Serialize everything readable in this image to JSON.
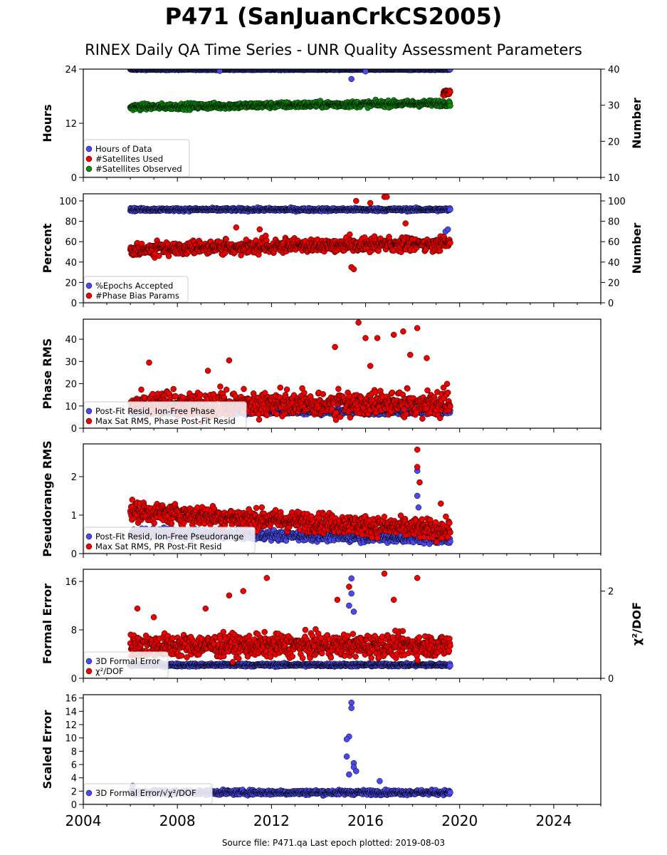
{
  "title": "P471 (SanJuanCrkCS2005)",
  "subtitle": "RINEX Daily QA Time Series - UNR Quality Assessment Parameters",
  "footer": "Source file: P471.qa Last epoch plotted: 2019-08-03",
  "colors": {
    "blue": "#4a4aee",
    "red": "#ee0000",
    "green": "#0a8a0a",
    "edge": "#000000"
  },
  "x_axis": {
    "range": [
      2004,
      2026
    ],
    "ticks": [
      2004,
      2008,
      2012,
      2016,
      2020,
      2024
    ]
  },
  "chart_data": [
    {
      "type": "scatter",
      "ylabel": "Hours",
      "ylabel_right": "Number",
      "ylim": [
        0,
        24
      ],
      "yticks": [
        0,
        12,
        24
      ],
      "ylim_right": [
        10,
        40
      ],
      "yticks_right": [
        10,
        20,
        30,
        40
      ],
      "legend": "lower-left",
      "series": [
        {
          "name": "Hours of Data",
          "color": "#4a4aee",
          "axis": "left",
          "x_range": [
            2006.0,
            2019.6
          ],
          "level": 23.9,
          "spread": 0.1,
          "outliers": [
            [
              2009.8,
              23.6
            ],
            [
              2015.4,
              21.8
            ],
            [
              2016.0,
              23.5
            ]
          ]
        },
        {
          "name": "#Satellites Used",
          "color": "#ee0000",
          "axis": "right",
          "x_range": [
            2019.3,
            2019.6
          ],
          "level": 33.5,
          "spread": 1.0
        },
        {
          "name": "#Satellites Observed",
          "color": "#0a8a0a",
          "axis": "right",
          "x_range": [
            2006.0,
            2019.6
          ],
          "level": 29.5,
          "trend_end": 30.6,
          "spread": 0.8
        }
      ]
    },
    {
      "type": "scatter",
      "ylabel": "Percent",
      "ylabel_right": "Number",
      "ylim": [
        0,
        107
      ],
      "yticks": [
        0,
        20,
        40,
        60,
        80,
        100
      ],
      "ylim_right": [
        0,
        107
      ],
      "yticks_right": [
        0,
        20,
        40,
        60,
        80,
        100
      ],
      "legend": "lower-left",
      "series": [
        {
          "name": "%Epochs Accepted",
          "color": "#4a4aee",
          "axis": "left",
          "x_range": [
            2006.0,
            2019.6
          ],
          "level": 91.5,
          "spread": 1.5,
          "outliers": [
            [
              2019.3,
              65
            ],
            [
              2019.4,
              70
            ],
            [
              2019.5,
              72
            ]
          ]
        },
        {
          "name": "#Phase Bias Params",
          "color": "#ee0000",
          "axis": "right",
          "x_range": [
            2006.0,
            2019.6
          ],
          "level": 52,
          "trend_end": 58,
          "spread": 6,
          "outliers": [
            [
              2015.4,
              35
            ],
            [
              2015.5,
              33
            ],
            [
              2015.6,
              100
            ],
            [
              2016.2,
              98
            ],
            [
              2016.8,
              104
            ],
            [
              2016.9,
              104
            ],
            [
              2017.7,
              78
            ],
            [
              2011.5,
              72
            ],
            [
              2010.5,
              74
            ]
          ]
        }
      ]
    },
    {
      "type": "scatter",
      "ylabel": "Phase RMS",
      "ylim": [
        0,
        49
      ],
      "yticks": [
        0,
        10,
        20,
        30,
        40
      ],
      "legend": "lower-left",
      "series": [
        {
          "name": "Post-Fit Resid, Ion-Free Phase",
          "color": "#4a4aee",
          "axis": "left",
          "x_range": [
            2006.0,
            2019.6
          ],
          "level": 7.5,
          "spread": 1.2
        },
        {
          "name": "Max Sat RMS, Phase Post-Fit Resid",
          "color": "#ee0000",
          "axis": "left",
          "x_range": [
            2006.0,
            2019.6
          ],
          "level": 10.5,
          "spread": 5,
          "outliers": [
            [
              2006.8,
              29.5
            ],
            [
              2009.3,
              25.8
            ],
            [
              2010.2,
              30.5
            ],
            [
              2014.7,
              36.5
            ],
            [
              2015.7,
              47.5
            ],
            [
              2016.0,
              40.5
            ],
            [
              2016.5,
              40.5
            ],
            [
              2017.2,
              42
            ],
            [
              2017.6,
              43.5
            ],
            [
              2018.2,
              45
            ],
            [
              2018.6,
              31.5
            ],
            [
              2016.2,
              28
            ],
            [
              2017.9,
              33
            ]
          ]
        }
      ]
    },
    {
      "type": "scatter",
      "ylabel": "Pseudorange RMS",
      "ylim": [
        0,
        2.85
      ],
      "yticks": [
        0,
        1,
        2
      ],
      "legend": "lower-left",
      "series": [
        {
          "name": "Post-Fit Resid, Ion-Free Pseudorange",
          "color": "#4a4aee",
          "axis": "left",
          "x_range": [
            2006.0,
            2019.6
          ],
          "level": 0.55,
          "trend_end": 0.38,
          "spread": 0.12,
          "outliers": [
            [
              2018.2,
              2.15
            ],
            [
              2018.2,
              1.5
            ],
            [
              2018.25,
              1.2
            ]
          ]
        },
        {
          "name": "Max Sat RMS, PR Post-Fit Resid",
          "color": "#ee0000",
          "axis": "left",
          "x_range": [
            2006.0,
            2019.6
          ],
          "level": 1.1,
          "trend_end": 0.6,
          "spread": 0.25,
          "outliers": [
            [
              2018.2,
              2.7
            ],
            [
              2018.2,
              2.25
            ],
            [
              2018.3,
              1.85
            ],
            [
              2019.2,
              1.3
            ]
          ]
        }
      ]
    },
    {
      "type": "scatter",
      "ylabel": "Formal Error",
      "ylabel_right": "χ²/DOF",
      "ylim": [
        0,
        18
      ],
      "yticks": [
        0,
        8,
        16
      ],
      "ylim_right": [
        0,
        2.5
      ],
      "yticks_right": [
        0,
        2
      ],
      "legend": "lower-left",
      "series": [
        {
          "name": "3D Formal Error",
          "color": "#4a4aee",
          "axis": "left",
          "x_range": [
            2006.0,
            2019.6
          ],
          "level": 2.2,
          "spread": 0.25,
          "outliers": [
            [
              2015.4,
              16.5
            ],
            [
              2015.4,
              14
            ],
            [
              2015.3,
              12
            ],
            [
              2015.5,
              11
            ]
          ]
        },
        {
          "name": "χ²/DOF",
          "color": "#ee0000",
          "axis": "right",
          "x_range": [
            2006.0,
            2019.6
          ],
          "level": 0.75,
          "spread": 0.25,
          "outliers": [
            [
              2006.3,
              1.6
            ],
            [
              2007.0,
              1.4
            ],
            [
              2009.2,
              1.6
            ],
            [
              2010.2,
              1.9
            ],
            [
              2010.8,
              2.0
            ],
            [
              2011.8,
              2.3
            ],
            [
              2014.8,
              1.8
            ],
            [
              2015.3,
              2.1
            ],
            [
              2016.8,
              2.4
            ],
            [
              2018.2,
              2.3
            ],
            [
              2017.2,
              1.8
            ]
          ]
        }
      ]
    },
    {
      "type": "scatter",
      "ylabel": "Scaled Error",
      "ylim": [
        0,
        16.5
      ],
      "yticks": [
        0,
        2,
        4,
        6,
        8,
        10,
        12,
        14,
        16
      ],
      "legend": "lower-left",
      "series": [
        {
          "name": "3D Formal Error/√χ²/DOF",
          "color": "#4a4aee",
          "axis": "left",
          "x_range": [
            2006.0,
            2019.6
          ],
          "level": 1.8,
          "spread": 0.35,
          "outliers": [
            [
              2015.4,
              15.3
            ],
            [
              2015.4,
              14.5
            ],
            [
              2015.3,
              10.2
            ],
            [
              2015.2,
              9.8
            ],
            [
              2015.2,
              7.2
            ],
            [
              2015.5,
              6.2
            ],
            [
              2015.5,
              5.6
            ],
            [
              2015.6,
              5.0
            ],
            [
              2015.3,
              4.5
            ],
            [
              2016.6,
              3.5
            ],
            [
              2006.1,
              2.8
            ]
          ]
        }
      ]
    }
  ]
}
